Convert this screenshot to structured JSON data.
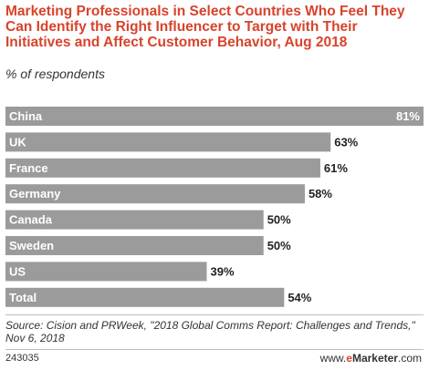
{
  "title": "Marketing Professionals in Select Countries Who Feel They Can Identify the Right Influencer to Target with Their Initiatives and Affect Customer Behavior, Aug 2018",
  "subtitle": "% of respondents",
  "source": "Source: Cision and PRWeek, \"2018 Global Comms Report: Challenges and Trends,\" Nov 6, 2018",
  "chart_id": "243035",
  "brand": {
    "prefix": "www.",
    "accent": "e",
    "name": "Marketer",
    "suffix": ".com"
  },
  "colors": {
    "bar": "#9b9b9b",
    "title": "#d8432b",
    "label_in_bar": "#ffffff",
    "value_text": "#222222"
  },
  "chart_data": {
    "type": "bar",
    "orientation": "horizontal",
    "categories": [
      "China",
      "UK",
      "France",
      "Germany",
      "Canada",
      "Sweden",
      "US",
      "Total"
    ],
    "values": [
      81,
      63,
      61,
      58,
      50,
      50,
      39,
      54
    ],
    "value_labels": [
      "81%",
      "63%",
      "61%",
      "58%",
      "50%",
      "50%",
      "39%",
      "54%"
    ],
    "xlim": [
      0,
      81
    ],
    "grid": false,
    "legend": "none"
  }
}
